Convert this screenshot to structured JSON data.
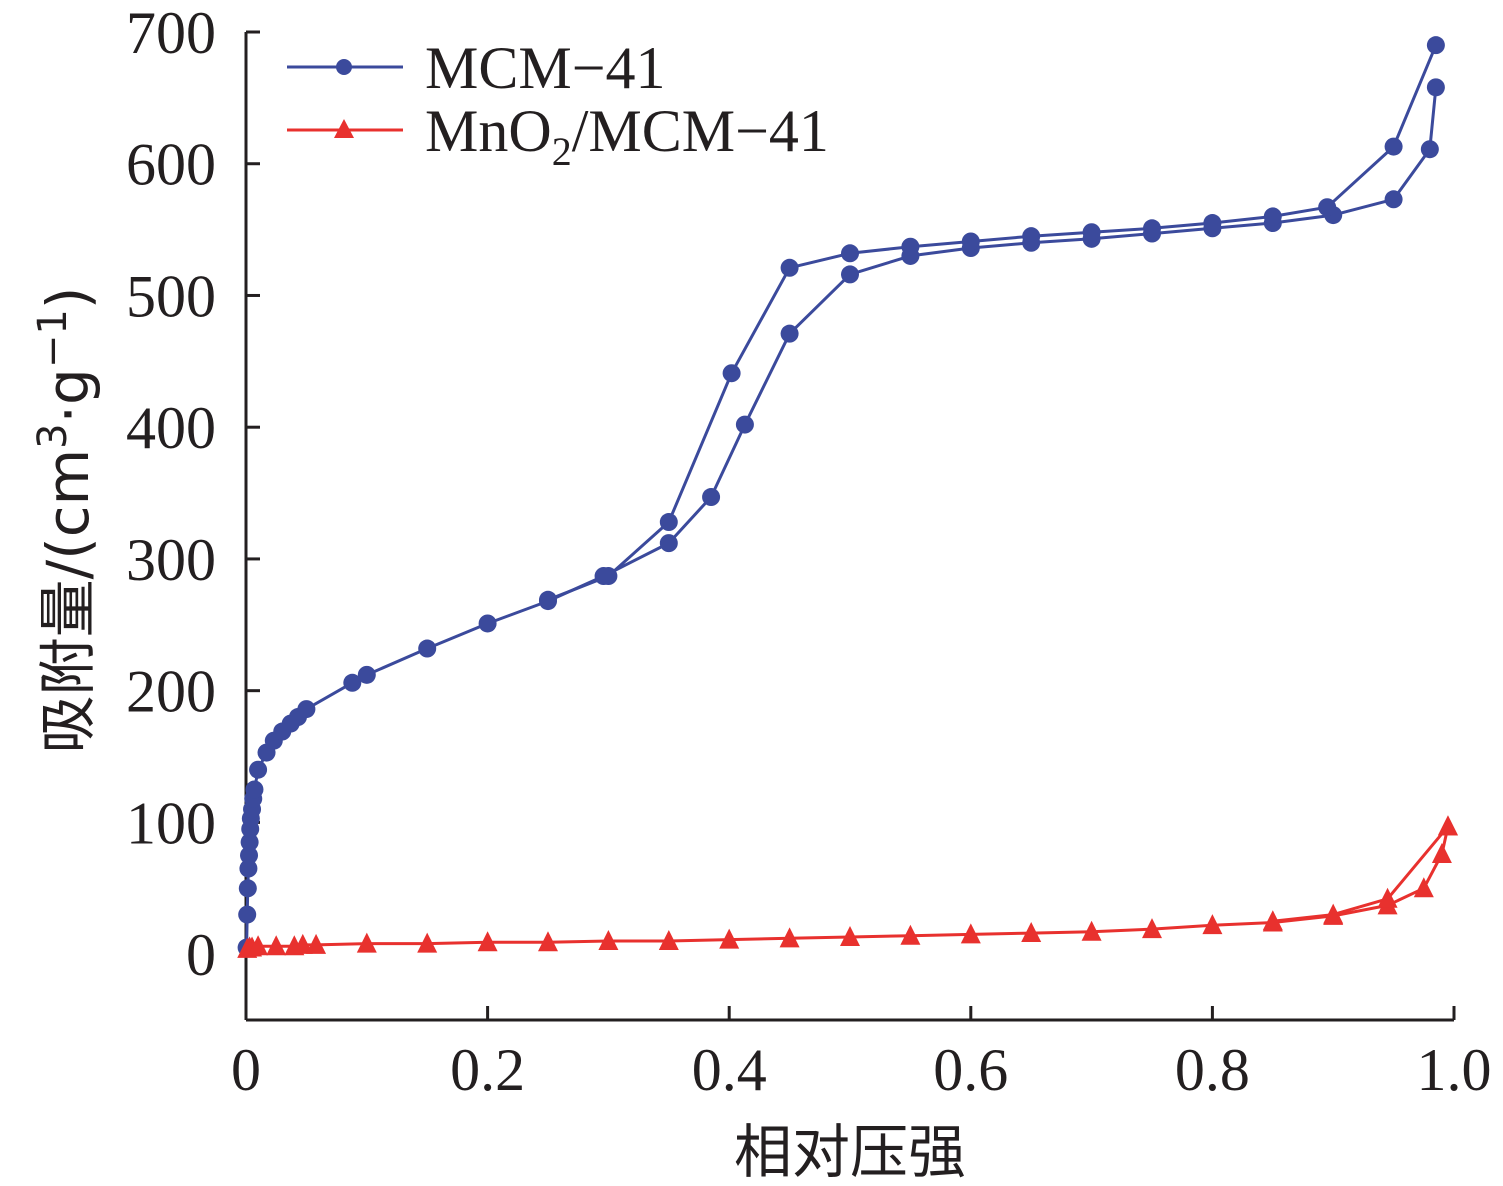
{
  "chart_data": {
    "type": "line",
    "xlabel": "相对压强",
    "ylabel": {
      "prefix": "吸附量/(cm",
      "sup1": "3",
      "mid": "·g",
      "sup2": "−1",
      "suffix": ")"
    },
    "xlim": [
      0,
      1.0
    ],
    "ylim": [
      -50,
      700
    ],
    "x_ticks": [
      0,
      0.2,
      0.4,
      0.6,
      0.8,
      1.0
    ],
    "x_tick_labels": [
      "0",
      "0.2",
      "0.4",
      "0.6",
      "0.8",
      "1.0"
    ],
    "y_ticks": [
      0,
      100,
      200,
      300,
      400,
      500,
      600,
      700
    ],
    "y_tick_labels": [
      "0",
      "100",
      "200",
      "300",
      "400",
      "500",
      "600",
      "700"
    ],
    "legend_position": "top-left",
    "series": [
      {
        "name": "MCM-41",
        "legend_label": {
          "main": "MCM−41"
        },
        "color": "#3b4a9c",
        "marker": "circle",
        "branches": [
          {
            "x": [
              0.0005,
              0.001,
              0.0015,
              0.002,
              0.0025,
              0.003,
              0.0035,
              0.004,
              0.005,
              0.006,
              0.007,
              0.01,
              0.017,
              0.023,
              0.03,
              0.037,
              0.043,
              0.05,
              0.088,
              0.1,
              0.15,
              0.2,
              0.25,
              0.296,
              0.35,
              0.385,
              0.413,
              0.45,
              0.5,
              0.55,
              0.6,
              0.65,
              0.7,
              0.75,
              0.8,
              0.85,
              0.9,
              0.95,
              0.98,
              0.985
            ],
            "y": [
              5,
              30,
              50,
              65,
              75,
              85,
              95,
              103,
              110,
              118,
              125,
              140,
              153,
              162,
              169,
              175,
              180,
              186,
              206,
              212,
              232,
              251,
              268,
              287,
              312,
              347,
              402,
              471,
              516,
              530,
              536,
              540,
              543,
              547,
              551,
              555,
              561,
              573,
              611,
              658
            ]
          },
          {
            "x": [
              0.985,
              0.95,
              0.895,
              0.85,
              0.8,
              0.75,
              0.7,
              0.65,
              0.6,
              0.55,
              0.5,
              0.45,
              0.402,
              0.35,
              0.3,
              0.25
            ],
            "y": [
              690,
              613,
              567,
              560,
              555,
              551,
              548,
              545,
              541,
              537,
              532,
              521,
              441,
              328,
              287,
              269
            ]
          }
        ]
      },
      {
        "name": "MnO2/MCM-41",
        "legend_label": {
          "main1": "MnO",
          "sub": "2",
          "main2": "/MCM−41"
        },
        "color": "#e8312e",
        "marker": "triangle",
        "branches": [
          {
            "x": [
              0.001,
              0.003,
              0.005,
              0.01,
              0.025,
              0.04,
              0.047,
              0.058,
              0.1,
              0.15,
              0.2,
              0.25,
              0.3,
              0.35,
              0.4,
              0.45,
              0.5,
              0.55,
              0.6,
              0.65,
              0.7,
              0.75,
              0.8,
              0.85,
              0.9,
              0.945,
              0.975,
              0.99,
              0.995
            ],
            "y": [
              4,
              5,
              5,
              6,
              6,
              6,
              7,
              7,
              8,
              8,
              9,
              9,
              10,
              10,
              11,
              12,
              13,
              14,
              15,
              16,
              17,
              19,
              22,
              24,
              29,
              37,
              50,
              76,
              97
            ]
          },
          {
            "x": [
              0.995,
              0.945,
              0.9,
              0.85
            ],
            "y": [
              97,
              42,
              30,
              25
            ]
          }
        ]
      }
    ]
  }
}
